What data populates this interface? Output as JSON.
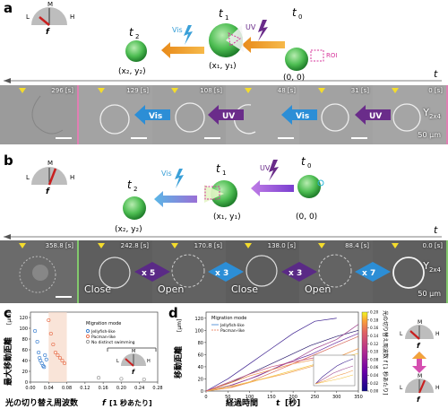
{
  "panels": {
    "a": "a",
    "b": "b",
    "c": "c",
    "d": "d"
  },
  "a": {
    "icon": {
      "L": "L",
      "M": "M",
      "H": "H",
      "f": "f"
    },
    "cells": [
      {
        "t": "t",
        "sub": "2",
        "coord": "(x₂, y₂)"
      },
      {
        "t": "t",
        "sub": "1",
        "coord": "(x₁, y₁)"
      },
      {
        "t": "t",
        "sub": "0",
        "coord": "(0, 0)"
      }
    ],
    "vis_label": "Vis",
    "uv_label": "UV",
    "roi_label": "ROI",
    "time_axis": "t",
    "frames": [
      "296 [s]",
      "129 [s]",
      "108 [s]",
      "48 [s]",
      "31 [s]",
      "0 [s]"
    ],
    "arrows": [
      "Vis",
      "UV",
      "Vis",
      "UV"
    ],
    "y_label": "Y",
    "y_sub": "2x4",
    "scale": "50 μm"
  },
  "b": {
    "icon": {
      "L": "L",
      "M": "M",
      "H": "H",
      "f": "f"
    },
    "cells": [
      {
        "t": "t",
        "sub": "2",
        "coord": "(x₂, y₂)"
      },
      {
        "t": "t",
        "sub": "1",
        "coord": "(x₁, y₁)"
      },
      {
        "t": "t",
        "sub": "0",
        "coord": "(0, 0)"
      }
    ],
    "vis_label": "Vis",
    "uv_label": "UV",
    "time_axis": "t",
    "frames": [
      "358.8 [s]",
      "242.8 [s]",
      "170.8 [s]",
      "138.0 [s]",
      "88.4 [s]",
      "0.0 [s]"
    ],
    "modes": [
      "Close",
      "Open",
      "Close",
      "Open"
    ],
    "arrows": [
      "x 5",
      "x 3",
      "x 3",
      "x 7"
    ],
    "y_label": "Y",
    "y_sub": "2x4",
    "scale": "50 μm"
  },
  "c": {
    "ylabel": "最大移動距離",
    "yunit": "[μm]",
    "xlabel": "光の切り替え周波数",
    "xlabel_f": "f",
    "xlabel_unit": "[1 秒あたり]",
    "xticks": [
      "0.00",
      "0.04",
      "0.08",
      "0.12",
      "0.16",
      "0.20",
      "0.24",
      "0.28"
    ],
    "yticks": [
      "0",
      "20",
      "40",
      "60",
      "80",
      "100",
      "120"
    ],
    "legend_title": "Migration mode",
    "legend": [
      "Jellyfish-like",
      "Pacman-like",
      "No distinct swimming"
    ],
    "icon": {
      "L": "L",
      "M": "M",
      "H": "H",
      "f": "f"
    }
  },
  "d": {
    "ylabel": "移動距離",
    "yunit": "[μm]",
    "xlabel": "経過時間",
    "xlabel_t": "t",
    "xlabel_unit": "[秒]",
    "xticks": [
      "0",
      "50",
      "100",
      "150",
      "200",
      "250",
      "300",
      "350"
    ],
    "yticks": [
      "0",
      "20",
      "40",
      "60",
      "80",
      "100",
      "120"
    ],
    "legend_title": "Migration mode",
    "legend": [
      "Jellyfish-like",
      "Pacman-like"
    ],
    "cbar_ticks": [
      "0.00",
      "0.02",
      "0.04",
      "0.06",
      "0.08",
      "0.10",
      "0.12",
      "0.14",
      "0.16",
      "0.18",
      "0.20"
    ],
    "cbar_label": "光の切り替え周波数 f [1 秒あたり]",
    "icon_top": {
      "L": "L",
      "M": "M",
      "H": "H",
      "f": "f"
    },
    "icon_bottom": {
      "L": "L",
      "M": "M",
      "H": "H",
      "f": "f"
    }
  },
  "chart_data": [
    {
      "type": "scatter",
      "title": "",
      "xlabel": "光の切り替え周波数 f [1 秒あたり]",
      "ylabel": "最大移動距離 [μm]",
      "xlim": [
        0,
        0.28
      ],
      "ylim": [
        0,
        130
      ],
      "series": [
        {
          "name": "Jellyfish-like",
          "color": "#3a7fd0",
          "x": [
            0.01,
            0.015,
            0.018,
            0.02,
            0.022,
            0.025,
            0.028,
            0.03,
            0.032,
            0.035
          ],
          "y": [
            95,
            75,
            55,
            45,
            40,
            35,
            30,
            28,
            50,
            42
          ]
        },
        {
          "name": "Pacman-like",
          "color": "#e8704e",
          "x": [
            0.04,
            0.045,
            0.05,
            0.055,
            0.06,
            0.065,
            0.07,
            0.075
          ],
          "y": [
            115,
            90,
            70,
            55,
            50,
            45,
            40,
            35
          ]
        },
        {
          "name": "No distinct swimming",
          "color": "#999999",
          "x": [
            0.15,
            0.2,
            0.25
          ],
          "y": [
            8,
            6,
            5
          ]
        }
      ]
    },
    {
      "type": "line",
      "title": "",
      "xlabel": "経過時間 t [秒]",
      "ylabel": "移動距離 [μm]",
      "xlim": [
        0,
        350
      ],
      "ylim": [
        0,
        130
      ],
      "series": [
        {
          "color": "#2a1a6e",
          "x": [
            0,
            60,
            120,
            180,
            240,
            300,
            350
          ],
          "y": [
            0,
            15,
            35,
            55,
            75,
            90,
            100
          ]
        },
        {
          "color": "#3b1f8f",
          "x": [
            0,
            50,
            100,
            150,
            200,
            250,
            300
          ],
          "y": [
            0,
            20,
            45,
            70,
            95,
            115,
            120
          ]
        },
        {
          "color": "#6a2ca0",
          "x": [
            0,
            60,
            120,
            180,
            240,
            300,
            350
          ],
          "y": [
            0,
            10,
            25,
            45,
            60,
            80,
            95
          ]
        },
        {
          "color": "#a0468f",
          "x": [
            0,
            50,
            100,
            150,
            200,
            250,
            300,
            350
          ],
          "y": [
            0,
            8,
            20,
            35,
            50,
            70,
            85,
            110
          ]
        },
        {
          "color": "#d86a5c",
          "x": [
            0,
            50,
            100,
            150,
            200,
            250,
            300,
            350
          ],
          "y": [
            0,
            5,
            15,
            30,
            45,
            60,
            75,
            90
          ]
        },
        {
          "color": "#f09a4a",
          "x": [
            0,
            60,
            120,
            180,
            240,
            300,
            350
          ],
          "y": [
            0,
            6,
            18,
            28,
            40,
            55,
            70
          ]
        },
        {
          "color": "#f6c645",
          "x": [
            0,
            70,
            140,
            210,
            280,
            350
          ],
          "y": [
            0,
            10,
            22,
            36,
            50,
            62
          ]
        },
        {
          "color": "#ee8a3c",
          "x": [
            0,
            50,
            100,
            150,
            200,
            250,
            300
          ],
          "y": [
            0,
            12,
            25,
            35,
            45,
            52,
            58
          ]
        },
        {
          "color": "#c7527a",
          "x": [
            0,
            50,
            100,
            150,
            200,
            250
          ],
          "y": [
            0,
            14,
            28,
            40,
            48,
            55
          ]
        }
      ]
    }
  ]
}
